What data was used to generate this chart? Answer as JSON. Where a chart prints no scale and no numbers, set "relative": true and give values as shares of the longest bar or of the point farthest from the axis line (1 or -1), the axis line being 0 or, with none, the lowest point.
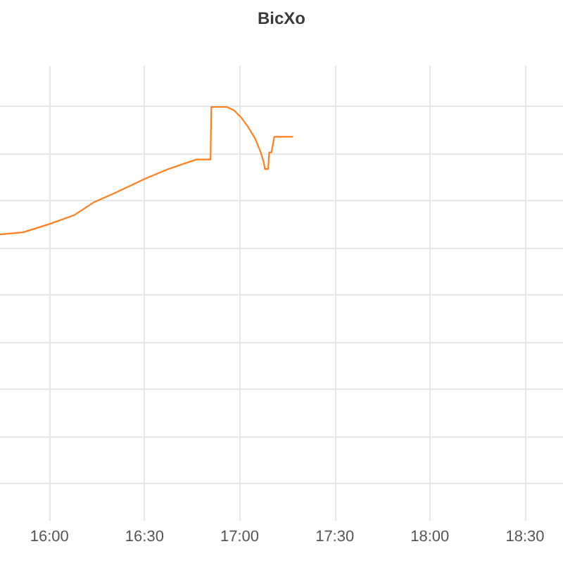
{
  "chart_data": {
    "type": "line",
    "title": "BicXo",
    "x": [
      15.74,
      15.861,
      16.0,
      16.132,
      16.231,
      16.354,
      16.5,
      16.625,
      16.773,
      16.847,
      16.851,
      16.933,
      16.97,
      17.007,
      17.044,
      17.081,
      17.111,
      17.126,
      17.133,
      17.15,
      17.155,
      17.167,
      17.182,
      17.278
    ],
    "values": [
      0.692,
      0.697,
      0.717,
      0.739,
      0.769,
      0.794,
      0.826,
      0.85,
      0.873,
      0.873,
      1,
      1,
      0.992,
      0.975,
      0.952,
      0.924,
      0.89,
      0.867,
      0.85,
      0.85,
      0.89,
      0.89,
      0.928,
      0.928
    ],
    "color": "#ff7f1e",
    "relative": true,
    "xlim": [
      15.74,
      18.7
    ],
    "xticks": [
      {
        "value": 16,
        "label": "16:00"
      },
      {
        "value": 16.5,
        "label": "16:30"
      },
      {
        "value": 17,
        "label": "17:00"
      },
      {
        "value": 17.5,
        "label": "17:30"
      },
      {
        "value": 18,
        "label": "18:00"
      },
      {
        "value": 18.5,
        "label": "18:30"
      }
    ],
    "grid": true,
    "marker": "none"
  }
}
